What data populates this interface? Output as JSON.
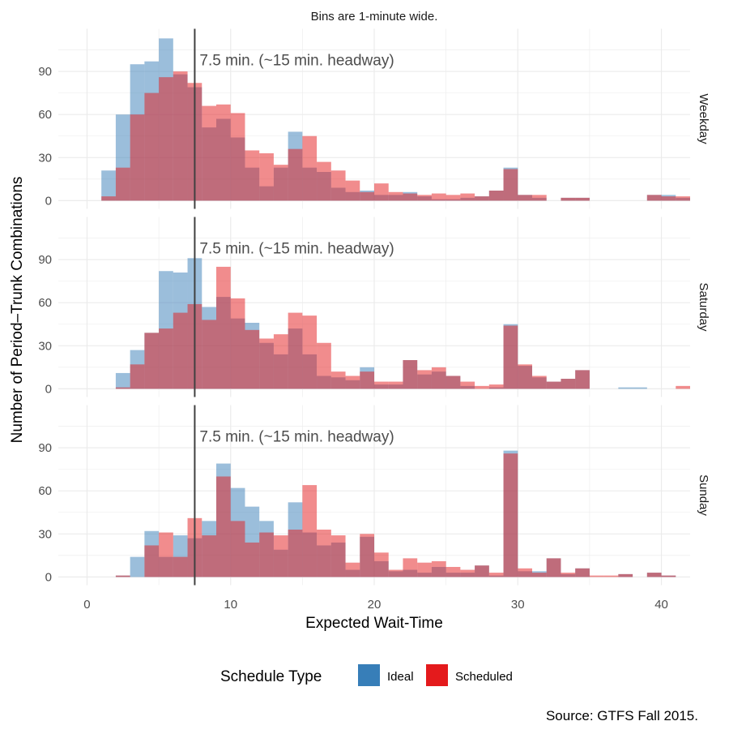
{
  "chart_data": {
    "type": "bar",
    "subtitle": "Bins are 1-minute wide.",
    "xlabel": "Expected Wait-Time",
    "ylabel": "Number of Period–Trunk Combinations",
    "caption": "Source: GTFS Fall 2015.",
    "xlim": [
      -2,
      42
    ],
    "ylim": [
      -5.7,
      119.7
    ],
    "x_ticks": [
      0,
      10,
      20,
      30,
      40
    ],
    "y_ticks": [
      0,
      30,
      60,
      90
    ],
    "grid": true,
    "bin_width": 1,
    "bin_starts": [
      0,
      1,
      2,
      3,
      4,
      5,
      6,
      7,
      8,
      9,
      10,
      11,
      12,
      13,
      14,
      15,
      16,
      17,
      18,
      19,
      20,
      21,
      22,
      23,
      24,
      25,
      26,
      27,
      28,
      29,
      30,
      31,
      32,
      33,
      34,
      35,
      36,
      37,
      38,
      39,
      40,
      41
    ],
    "reference_line": {
      "x": 7.5,
      "label": "7.5 min. (~15 min. headway)"
    },
    "legend": {
      "title": "Schedule Type",
      "position": "bottom"
    },
    "series_colors": {
      "Ideal": "#377eb8",
      "Scheduled": "#e41a1c"
    },
    "facets": [
      {
        "label": "Weekday",
        "series": [
          {
            "name": "Ideal",
            "values": [
              0,
              21,
              60,
              95,
              97,
              113,
              88,
              79,
              51,
              57,
              44,
              23,
              10,
              23,
              48,
              23,
              20,
              9,
              6,
              7,
              4,
              4,
              6,
              3,
              1,
              1,
              2,
              3,
              7,
              23,
              4,
              2,
              0,
              2,
              2,
              0,
              0,
              0,
              0,
              4,
              4,
              2
            ]
          },
          {
            "name": "Scheduled",
            "values": [
              0,
              3,
              23,
              60,
              75,
              86,
              90,
              82,
              66,
              67,
              61,
              35,
              33,
              25,
              36,
              45,
              27,
              21,
              14,
              6,
              12,
              6,
              5,
              4,
              5,
              4,
              5,
              3,
              7,
              22,
              4,
              4,
              0,
              2,
              2,
              0,
              0,
              0,
              0,
              4,
              3,
              3
            ]
          }
        ]
      },
      {
        "label": "Saturday",
        "series": [
          {
            "name": "Ideal",
            "values": [
              0,
              0,
              11,
              27,
              39,
              82,
              81,
              91,
              57,
              64,
              49,
              46,
              32,
              24,
              42,
              24,
              9,
              8,
              6,
              15,
              3,
              3,
              20,
              10,
              12,
              9,
              2,
              0,
              1,
              45,
              16,
              8,
              5,
              7,
              13,
              0,
              0,
              1,
              1,
              0,
              0,
              0
            ]
          },
          {
            "name": "Scheduled",
            "values": [
              0,
              0,
              1,
              17,
              39,
              42,
              53,
              59,
              48,
              85,
              63,
              41,
              35,
              38,
              53,
              51,
              32,
              12,
              9,
              12,
              5,
              5,
              20,
              13,
              15,
              9,
              5,
              2,
              3,
              44,
              17,
              9,
              5,
              7,
              13,
              0,
              0,
              0,
              0,
              0,
              0,
              2
            ]
          }
        ]
      },
      {
        "label": "Sunday",
        "series": [
          {
            "name": "Ideal",
            "values": [
              0,
              0,
              1,
              14,
              32,
              14,
              29,
              27,
              39,
              79,
              62,
              49,
              39,
              19,
              52,
              31,
              22,
              24,
              5,
              28,
              11,
              4,
              5,
              3,
              7,
              3,
              3,
              8,
              1,
              88,
              4,
              4,
              13,
              2,
              6,
              0,
              0,
              2,
              0,
              3,
              1,
              0
            ]
          },
          {
            "name": "Scheduled",
            "values": [
              0,
              0,
              1,
              0,
              22,
              31,
              14,
              41,
              29,
              70,
              39,
              24,
              31,
              29,
              33,
              64,
              33,
              29,
              10,
              30,
              17,
              5,
              13,
              10,
              11,
              7,
              5,
              8,
              3,
              86,
              6,
              3,
              13,
              3,
              6,
              1,
              1,
              2,
              0,
              3,
              1,
              0
            ]
          }
        ]
      }
    ]
  }
}
